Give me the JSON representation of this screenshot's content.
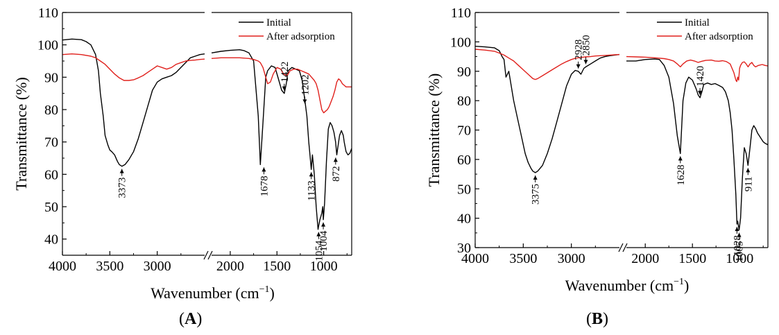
{
  "chart_data": [
    {
      "panel": "A",
      "type": "line",
      "xlabel": "Wavenumber (cm",
      "xlabel_sup": "−1",
      "xlabel_end": ")",
      "ylabel": "Transmittance (%)",
      "ylim": [
        35,
        110
      ],
      "yticks": [
        40,
        50,
        60,
        70,
        80,
        90,
        100,
        110
      ],
      "xticks_left": [
        4000,
        3500,
        3000
      ],
      "xticks_right": [
        2000,
        1500,
        1000
      ],
      "x_break": [
        2500,
        2200
      ],
      "legend": [
        "Initial",
        "After adsorption"
      ],
      "colors": {
        "Initial": "#000000",
        "After adsorption": "#e0201c"
      },
      "series": [
        {
          "name": "Initial",
          "x": [
            4000,
            3900,
            3800,
            3750,
            3700,
            3650,
            3620,
            3600,
            3570,
            3550,
            3520,
            3500,
            3480,
            3450,
            3420,
            3400,
            3373,
            3340,
            3300,
            3250,
            3200,
            3150,
            3100,
            3050,
            3000,
            2950,
            2900,
            2850,
            2800,
            2750,
            2700,
            2650,
            2600,
            2550,
            2500,
            2200,
            2100,
            2000,
            1900,
            1850,
            1800,
            1750,
            1700,
            1678,
            1650,
            1620,
            1600,
            1560,
            1520,
            1480,
            1450,
            1422,
            1400,
            1380,
            1340,
            1300,
            1260,
            1230,
            1202,
            1180,
            1160,
            1140,
            1133,
            1120,
            1100,
            1080,
            1060,
            1054,
            1040,
            1030,
            1020,
            1010,
            1004,
            990,
            970,
            950,
            930,
            910,
            890,
            872,
            860,
            850,
            830,
            810,
            790,
            780,
            760,
            740,
            720,
            700
          ],
          "y": [
            101.5,
            101.8,
            101.6,
            101,
            100,
            97,
            92,
            85,
            78,
            72,
            69,
            67.5,
            67,
            66,
            64,
            63,
            62.5,
            63,
            64.5,
            67,
            71,
            76,
            81,
            86,
            88.5,
            89.5,
            90,
            90.5,
            91.5,
            93,
            94.5,
            96,
            96.5,
            97,
            97.2,
            97.5,
            98,
            98.3,
            98.5,
            98.2,
            97.5,
            95,
            78,
            63,
            76,
            90,
            92,
            93.5,
            93,
            89,
            86,
            85,
            88,
            92,
            93,
            92.5,
            92,
            89,
            83,
            78,
            70,
            64,
            61.5,
            66,
            60,
            50,
            43,
            44,
            46,
            47,
            48,
            50,
            46,
            51,
            64,
            74,
            76,
            75,
            73,
            70,
            66,
            68,
            72,
            73.5,
            72,
            70,
            67,
            66,
            66.5,
            68
          ]
        },
        {
          "name": "After adsorption",
          "x": [
            4000,
            3900,
            3800,
            3700,
            3650,
            3600,
            3550,
            3500,
            3450,
            3400,
            3350,
            3300,
            3250,
            3200,
            3150,
            3100,
            3050,
            3000,
            2950,
            2900,
            2850,
            2800,
            2750,
            2700,
            2650,
            2600,
            2550,
            2500,
            2200,
            2100,
            2000,
            1900,
            1800,
            1750,
            1700,
            1678,
            1650,
            1620,
            1600,
            1570,
            1540,
            1500,
            1460,
            1430,
            1400,
            1380,
            1360,
            1320,
            1280,
            1240,
            1200,
            1160,
            1130,
            1100,
            1080,
            1060,
            1040,
            1020,
            1000,
            980,
            960,
            940,
            920,
            900,
            880,
            860,
            840,
            820,
            800,
            780,
            760,
            740,
            700
          ],
          "y": [
            97,
            97.2,
            97,
            96.5,
            96,
            95,
            94,
            92.5,
            91,
            89.8,
            89,
            89,
            89.2,
            89.8,
            90.5,
            91.5,
            92.5,
            93.5,
            93,
            92.5,
            93,
            94,
            94.5,
            95,
            95.2,
            95.3,
            95.5,
            95.6,
            95.8,
            96,
            96,
            96,
            95.8,
            95.5,
            95,
            94.5,
            93,
            90,
            88,
            88.5,
            91,
            93,
            92.5,
            91,
            90.5,
            91,
            92,
            92.5,
            92.5,
            92,
            91.5,
            91,
            90,
            89,
            88,
            86,
            83,
            80,
            79,
            79.5,
            80,
            81,
            82.5,
            84,
            86,
            88.5,
            89.5,
            89,
            88,
            87.5,
            87,
            87,
            87
          ]
        }
      ],
      "annotations": [
        {
          "label": "3373",
          "x": 3373,
          "y": 62.5,
          "rotate": true
        },
        {
          "label": "1678",
          "x": 1640,
          "y": 63,
          "rotate": true
        },
        {
          "label": "1422",
          "x": 1422,
          "y": 85,
          "rotate": true
        },
        {
          "label": "1202",
          "x": 1202,
          "y": 81,
          "rotate": true
        },
        {
          "label": "1133",
          "x": 1133,
          "y": 61.5,
          "rotate": true
        },
        {
          "label": "1054",
          "x": 1054,
          "y": 43,
          "rotate": true
        },
        {
          "label": "1004",
          "x": 1004,
          "y": 46,
          "rotate": true
        },
        {
          "label": "872",
          "x": 872,
          "y": 66,
          "rotate": true
        }
      ]
    },
    {
      "panel": "B",
      "type": "line",
      "xlabel": "Wavenumber (cm",
      "xlabel_sup": "−1",
      "xlabel_end": ")",
      "ylabel": "Transmittance (%)",
      "ylim": [
        30,
        110
      ],
      "yticks": [
        30,
        40,
        50,
        60,
        70,
        80,
        90,
        100,
        110
      ],
      "xticks_left": [
        4000,
        3500,
        3000
      ],
      "xticks_right": [
        2000,
        1500,
        1000
      ],
      "x_break": [
        2500,
        2200
      ],
      "legend": [
        "Initial",
        "After adsorption"
      ],
      "colors": {
        "Initial": "#000000",
        "After adsorption": "#e0201c"
      },
      "series": [
        {
          "name": "Initial",
          "x": [
            4000,
            3900,
            3800,
            3750,
            3720,
            3700,
            3680,
            3650,
            3620,
            3600,
            3560,
            3520,
            3480,
            3450,
            3420,
            3400,
            3375,
            3350,
            3300,
            3250,
            3200,
            3150,
            3100,
            3050,
            3000,
            2960,
            2928,
            2900,
            2870,
            2850,
            2800,
            2750,
            2700,
            2650,
            2600,
            2550,
            2500,
            2200,
            2100,
            2000,
            1900,
            1850,
            1800,
            1750,
            1700,
            1660,
            1628,
            1600,
            1570,
            1540,
            1500,
            1460,
            1440,
            1420,
            1400,
            1380,
            1340,
            1300,
            1260,
            1220,
            1180,
            1150,
            1120,
            1100,
            1080,
            1060,
            1040,
            1028,
            1020,
            1010,
            1005,
            990,
            970,
            950,
            930,
            911,
            890,
            870,
            850,
            830,
            810,
            790,
            770,
            750,
            730,
            700
          ],
          "y": [
            98.5,
            98.3,
            98,
            97,
            95,
            94,
            88,
            90,
            84,
            80,
            74,
            68,
            62,
            59,
            57,
            56,
            55.5,
            56,
            58,
            62,
            67,
            73,
            79,
            85,
            89,
            90.3,
            90,
            89,
            91,
            91.5,
            92.5,
            93.5,
            94.5,
            95,
            95.3,
            95.5,
            95.7,
            93.5,
            93.5,
            94,
            94.2,
            94,
            92,
            88,
            79,
            68,
            62,
            80,
            86,
            88,
            87,
            84,
            82,
            81,
            83,
            85.5,
            86,
            85.5,
            85.8,
            85.2,
            84.5,
            83,
            80,
            76,
            70,
            60,
            48,
            38,
            39,
            37,
            36,
            40,
            54,
            64,
            62,
            58,
            64,
            70,
            71.5,
            70.5,
            69,
            68,
            67,
            66,
            65.5,
            65
          ]
        },
        {
          "name": "After adsorption",
          "x": [
            4000,
            3900,
            3800,
            3750,
            3700,
            3650,
            3600,
            3550,
            3500,
            3450,
            3400,
            3375,
            3350,
            3300,
            3250,
            3200,
            3150,
            3100,
            3050,
            3000,
            2950,
            2900,
            2850,
            2800,
            2750,
            2700,
            2650,
            2600,
            2550,
            2500,
            2200,
            2100,
            2000,
            1900,
            1800,
            1750,
            1700,
            1660,
            1628,
            1600,
            1560,
            1520,
            1480,
            1440,
            1400,
            1360,
            1300,
            1260,
            1220,
            1180,
            1140,
            1100,
            1080,
            1060,
            1040,
            1030,
            1020,
            1010,
            1000,
            990,
            970,
            950,
            930,
            910,
            890,
            870,
            850,
            830,
            800,
            760,
            730,
            700
          ],
          "y": [
            97.5,
            97.2,
            96.8,
            96.2,
            95.5,
            94.5,
            93.5,
            92,
            90.5,
            89,
            87.5,
            87.2,
            87.5,
            88.5,
            89.5,
            90.5,
            91.5,
            92.5,
            93.3,
            94,
            94.5,
            94.7,
            94.9,
            95,
            95.2,
            95.3,
            95.4,
            95.5,
            95.6,
            95.7,
            95,
            94.9,
            94.8,
            94.6,
            94.3,
            94,
            93.5,
            92.5,
            91.5,
            92.5,
            93.5,
            93.8,
            93.5,
            93,
            93.4,
            93.7,
            93.8,
            93.5,
            93.4,
            93.6,
            93.3,
            92.5,
            91,
            89.5,
            87,
            86.5,
            88,
            87,
            91,
            92,
            93,
            93.2,
            92.5,
            91.5,
            92.5,
            93,
            92,
            91.5,
            92,
            92.3,
            92,
            91.8
          ]
        }
      ],
      "annotations": [
        {
          "label": "3375",
          "x": 3375,
          "y": 55.5,
          "rotate": true
        },
        {
          "label": "2928",
          "x": 2928,
          "y": 90,
          "rotate": true
        },
        {
          "label": "2850",
          "x": 2850,
          "y": 91.5,
          "rotate": true
        },
        {
          "label": "1628",
          "x": 1628,
          "y": 62,
          "rotate": true
        },
        {
          "label": "1420",
          "x": 1420,
          "y": 81,
          "rotate": true
        },
        {
          "label": "1028",
          "x": 1028,
          "y": 38,
          "rotate": true
        },
        {
          "label": "1005",
          "x": 1005,
          "y": 36,
          "rotate": true
        },
        {
          "label": "911",
          "x": 911,
          "y": 58,
          "rotate": true
        }
      ]
    }
  ],
  "captions": {
    "a": "A",
    "b": "B"
  }
}
